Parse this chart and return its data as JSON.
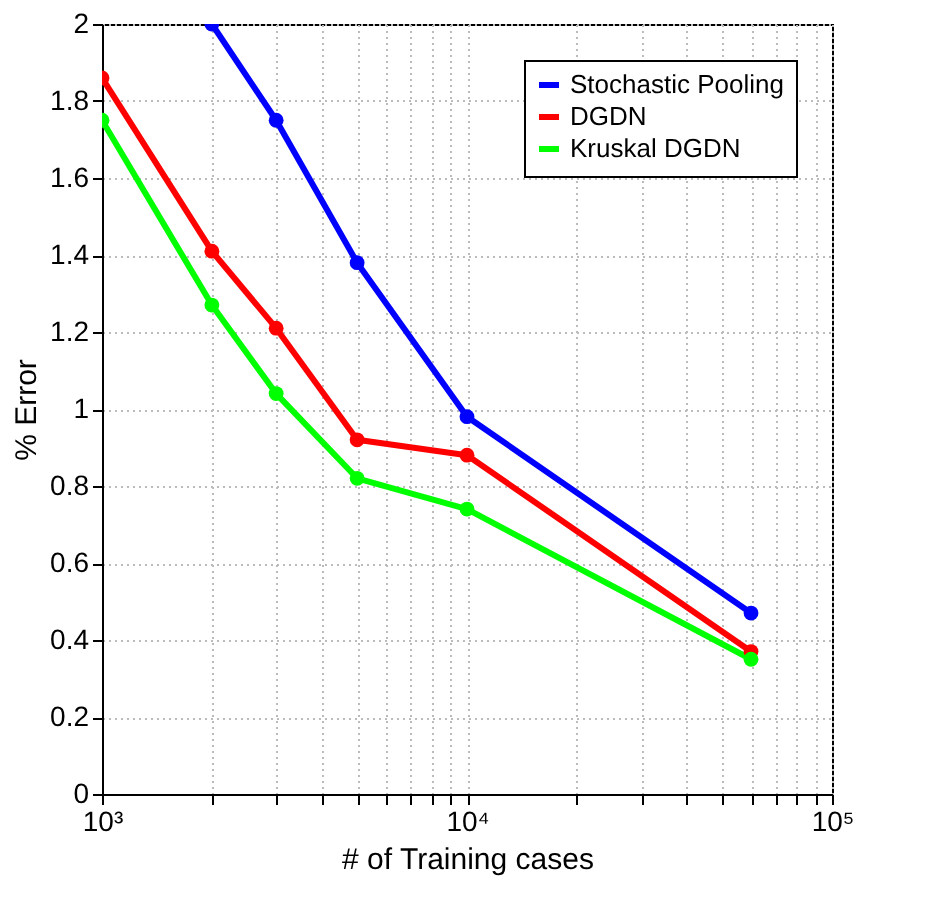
{
  "chart_data": {
    "type": "line",
    "xlabel": "# of Training cases",
    "ylabel": "% Error",
    "log": "x",
    "grid": true,
    "legend": "top right",
    "marker": "circle",
    "line_style": "solid",
    "xlim": [
      1000,
      100000
    ],
    "ylim": [
      0,
      2
    ],
    "xticks": [
      {
        "value": 1000,
        "label": "10³"
      },
      {
        "value": 2000,
        "label": null
      },
      {
        "value": 3000,
        "label": null
      },
      {
        "value": 4000,
        "label": null
      },
      {
        "value": 5000,
        "label": null
      },
      {
        "value": 6000,
        "label": null
      },
      {
        "value": 7000,
        "label": null
      },
      {
        "value": 8000,
        "label": null
      },
      {
        "value": 9000,
        "label": null
      },
      {
        "value": 10000,
        "label": "10⁴"
      },
      {
        "value": 20000,
        "label": null
      },
      {
        "value": 30000,
        "label": null
      },
      {
        "value": 40000,
        "label": null
      },
      {
        "value": 50000,
        "label": null
      },
      {
        "value": 60000,
        "label": null
      },
      {
        "value": 70000,
        "label": null
      },
      {
        "value": 80000,
        "label": null
      },
      {
        "value": 90000,
        "label": null
      },
      {
        "value": 100000,
        "label": "10⁵"
      }
    ],
    "yticks": [
      0,
      0.2,
      0.4,
      0.6,
      0.8,
      1,
      1.2,
      1.4,
      1.6,
      1.8,
      2
    ],
    "series": [
      {
        "name": "Stochastic Pooling",
        "color": "#0000ff",
        "x": [
          2000,
          3000,
          5000,
          10000,
          60000
        ],
        "values": [
          2.0,
          1.75,
          1.38,
          0.98,
          0.47
        ]
      },
      {
        "name": "DGDN",
        "color": "#ff0000",
        "x": [
          1000,
          2000,
          3000,
          5000,
          10000,
          60000
        ],
        "values": [
          1.86,
          1.41,
          1.21,
          0.92,
          0.88,
          0.37
        ]
      },
      {
        "name": "Kruskal DGDN",
        "color": "#00ff00",
        "x": [
          1000,
          2000,
          3000,
          5000,
          10000,
          60000
        ],
        "values": [
          1.75,
          1.27,
          1.04,
          0.82,
          0.74,
          0.35
        ]
      }
    ]
  }
}
